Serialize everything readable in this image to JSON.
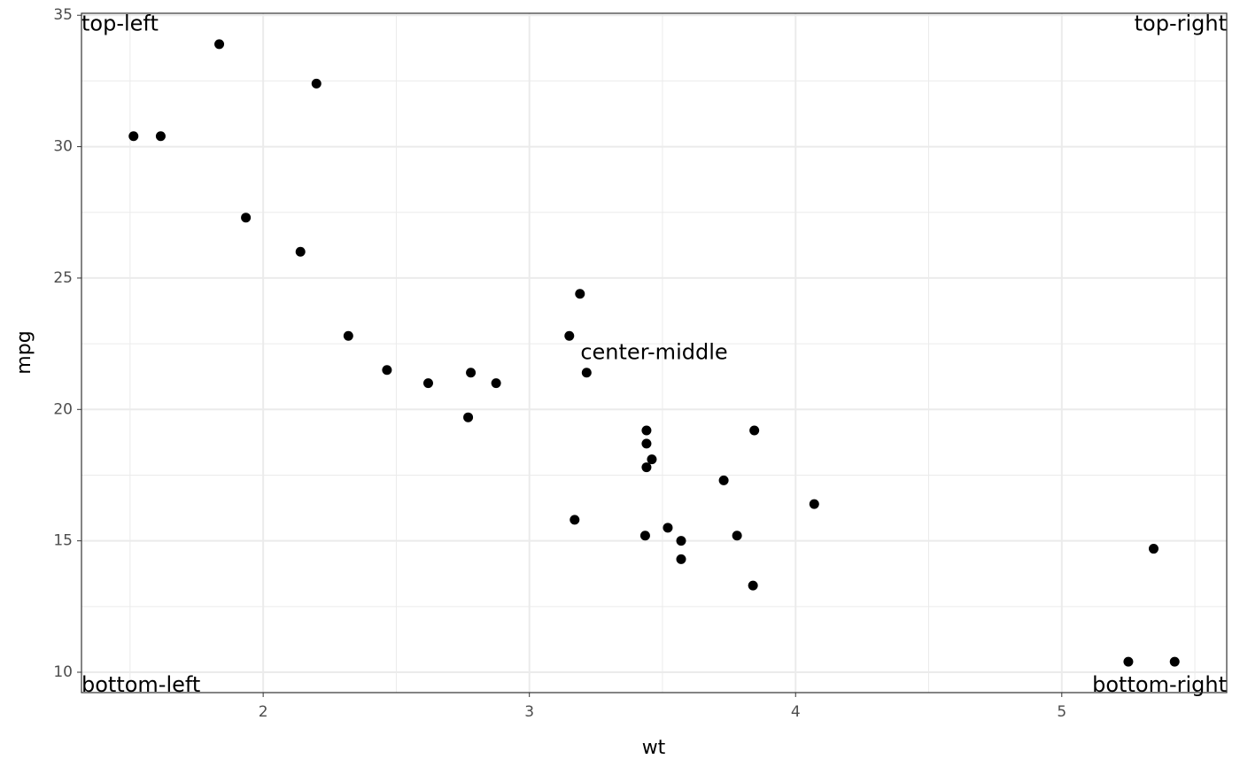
{
  "chart_data": {
    "type": "scatter",
    "color": "#000000",
    "x": [
      2.62,
      2.875,
      2.32,
      3.215,
      3.44,
      3.46,
      3.57,
      3.19,
      3.15,
      3.44,
      3.44,
      4.07,
      3.73,
      3.78,
      5.25,
      5.424,
      5.345,
      2.2,
      1.615,
      1.835,
      2.465,
      3.52,
      3.435,
      3.84,
      3.845,
      1.935,
      2.14,
      1.513,
      3.17,
      2.77,
      3.57,
      2.78
    ],
    "values": [
      21.0,
      21.0,
      22.8,
      21.4,
      18.7,
      18.1,
      14.3,
      24.4,
      22.8,
      19.2,
      17.8,
      16.4,
      17.3,
      15.2,
      10.4,
      10.4,
      14.7,
      32.4,
      30.4,
      33.9,
      21.5,
      15.5,
      15.2,
      13.3,
      19.2,
      27.3,
      26.0,
      30.4,
      15.8,
      19.7,
      15.0,
      21.4
    ],
    "xlabel": "wt",
    "ylabel": "mpg",
    "xlim": [
      1.31745,
      5.61955
    ],
    "ylim": [
      9.225,
      35.075
    ],
    "xticks": [
      2,
      3,
      4,
      5
    ],
    "yticks": [
      10,
      15,
      20,
      25,
      30,
      35
    ],
    "x_minor_grid": [
      1.5,
      2.5,
      3.5,
      4.5,
      5.5
    ],
    "y_minor_grid": [
      12.5,
      17.5,
      22.5,
      27.5,
      32.5
    ],
    "grid": true,
    "annotations": [
      "top-left",
      "top-right",
      "bottom-left",
      "bottom-right",
      "center-middle"
    ]
  }
}
